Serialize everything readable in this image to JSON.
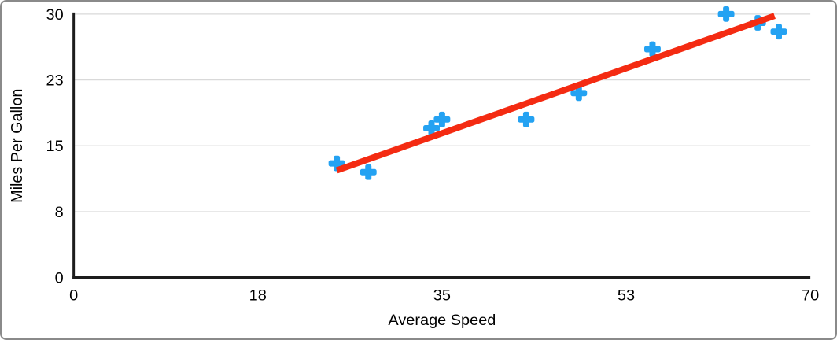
{
  "chart_data": {
    "type": "scatter",
    "title": "",
    "xlabel": "Average Speed",
    "ylabel": "Miles Per Gallon",
    "xlim": [
      0,
      70
    ],
    "ylim": [
      0,
      30
    ],
    "grid": "horizontal-only",
    "legend_position": "none",
    "marker_style": "plus",
    "x_ticks": [
      {
        "value": 0,
        "label": "0"
      },
      {
        "value": 17.5,
        "label": "18"
      },
      {
        "value": 35,
        "label": "35"
      },
      {
        "value": 52.5,
        "label": "53"
      },
      {
        "value": 70,
        "label": "70"
      }
    ],
    "y_ticks": [
      {
        "value": 0,
        "label": "0"
      },
      {
        "value": 7.5,
        "label": "8"
      },
      {
        "value": 15,
        "label": "15"
      },
      {
        "value": 22.5,
        "label": "23"
      },
      {
        "value": 30,
        "label": "30"
      }
    ],
    "points": [
      {
        "x": 25,
        "y": 13
      },
      {
        "x": 28,
        "y": 12
      },
      {
        "x": 34,
        "y": 17
      },
      {
        "x": 35,
        "y": 18
      },
      {
        "x": 43,
        "y": 18
      },
      {
        "x": 48,
        "y": 21
      },
      {
        "x": 55,
        "y": 26
      },
      {
        "x": 62,
        "y": 30
      },
      {
        "x": 65,
        "y": 29
      },
      {
        "x": 67,
        "y": 28
      }
    ],
    "trendline": {
      "type": "linear",
      "x1": 25.0,
      "y1": 12.2,
      "x2": 66.6,
      "y2": 29.8
    },
    "colors": {
      "marker": "#24A2F2",
      "trendline": "#F42B12",
      "gridline": "#D9D9D9",
      "axis_line": "#1C1C1C",
      "tick_text": "#000000",
      "frame_border": "#8A8A8A",
      "background": "#FFFFFF"
    }
  }
}
